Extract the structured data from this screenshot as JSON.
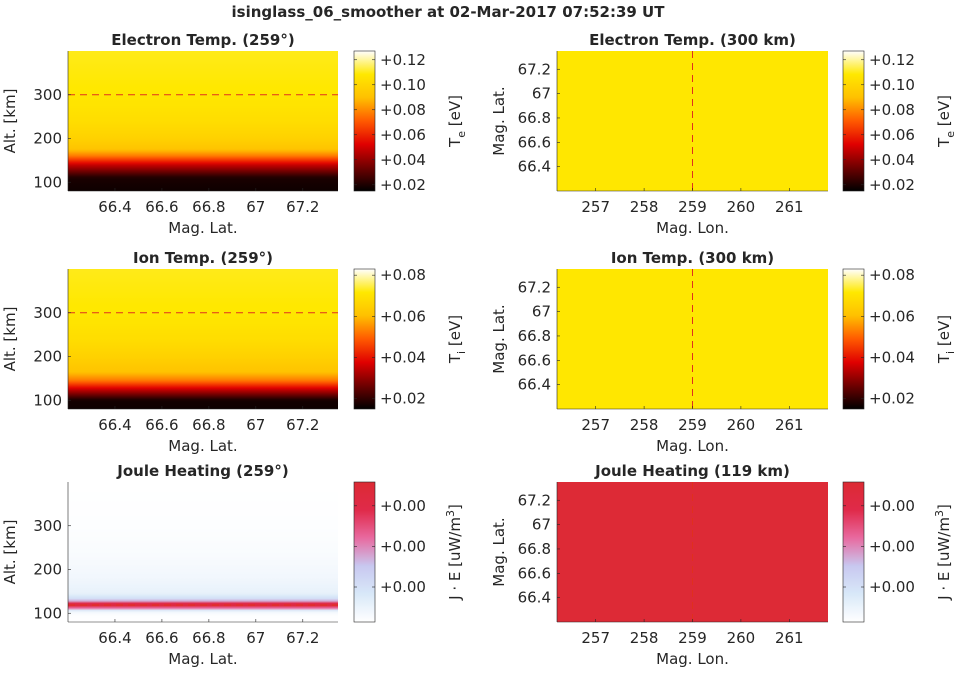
{
  "figure": {
    "title": "isinglass_06_smoother at 02-Mar-2017 07:52:39 UT"
  },
  "colors": {
    "hot": [
      "#000000",
      "#6e0000",
      "#e00000",
      "#ff5a00",
      "#ffc000",
      "#ffe800",
      "#ffffff"
    ],
    "joule": [
      "#ffffff",
      "#d8e8f8",
      "#c8c8f0",
      "#e86aa0",
      "#e02a4a",
      "#dc2a33"
    ],
    "marker_line": "#e0301e"
  },
  "chart_data": [
    {
      "type": "heatmap",
      "title": "Electron Temp. (259°)",
      "xlabel": "Mag. Lat.",
      "ylabel": "Alt. [km]",
      "xlim": [
        66.2,
        67.35
      ],
      "ylim": [
        80,
        400
      ],
      "xticks": [
        66.4,
        66.6,
        66.8,
        67,
        67.2
      ],
      "xticklabels": [
        "66.4",
        "66.6",
        "66.8",
        "67",
        "67.2"
      ],
      "yticks": [
        100,
        200,
        300
      ],
      "yticklabels": [
        "100",
        "200",
        "300"
      ],
      "colormap": "hot",
      "reference_line": {
        "orientation": "horizontal",
        "value": 300
      },
      "profile": {
        "variable": "altitude",
        "values": [
          80,
          110,
          140,
          160,
          175,
          200,
          240,
          300,
          400
        ],
        "fraction": [
          0.02,
          0.04,
          0.3,
          0.55,
          0.68,
          0.74,
          0.79,
          0.83,
          0.85
        ]
      },
      "colorbar": {
        "label": "T_e [eV]",
        "label_main": "T",
        "label_sub": "e",
        "label_unit": " [eV]",
        "range": [
          0.015,
          0.127
        ],
        "ticks": [
          0.02,
          0.04,
          0.06,
          0.08,
          0.1,
          0.12
        ],
        "ticklabels": [
          "+0.02",
          "+0.04",
          "+0.06",
          "+0.08",
          "+0.10",
          "+0.12"
        ]
      }
    },
    {
      "type": "heatmap",
      "title": "Electron Temp. (300 km)",
      "xlabel": "Mag. Lon.",
      "ylabel": "Mag. Lat.",
      "xlim": [
        256.2,
        261.8
      ],
      "ylim": [
        66.2,
        67.35
      ],
      "xticks": [
        257,
        258,
        259,
        260,
        261
      ],
      "xticklabels": [
        "257",
        "258",
        "259",
        "260",
        "261"
      ],
      "yticks": [
        66.4,
        66.6,
        66.8,
        67,
        67.2
      ],
      "yticklabels": [
        "66.4",
        "66.6",
        "66.8",
        "67",
        "67.2"
      ],
      "colormap": "hot",
      "reference_line": {
        "orientation": "vertical",
        "value": 259
      },
      "uniform_fraction": 0.83,
      "colorbar": {
        "label": "T_e [eV]",
        "label_main": "T",
        "label_sub": "e",
        "label_unit": " [eV]",
        "range": [
          0.015,
          0.127
        ],
        "ticks": [
          0.02,
          0.04,
          0.06,
          0.08,
          0.1,
          0.12
        ],
        "ticklabels": [
          "+0.02",
          "+0.04",
          "+0.06",
          "+0.08",
          "+0.10",
          "+0.12"
        ]
      }
    },
    {
      "type": "heatmap",
      "title": "Ion Temp. (259°)",
      "xlabel": "Mag. Lat.",
      "ylabel": "Alt. [km]",
      "xlim": [
        66.2,
        67.35
      ],
      "ylim": [
        80,
        400
      ],
      "xticks": [
        66.4,
        66.6,
        66.8,
        67,
        67.2
      ],
      "xticklabels": [
        "66.4",
        "66.6",
        "66.8",
        "67",
        "67.2"
      ],
      "yticks": [
        100,
        200,
        300
      ],
      "yticklabels": [
        "100",
        "200",
        "300"
      ],
      "colormap": "hot",
      "reference_line": {
        "orientation": "horizontal",
        "value": 300
      },
      "profile": {
        "variable": "altitude",
        "values": [
          80,
          100,
          125,
          145,
          165,
          200,
          240,
          300,
          400
        ],
        "fraction": [
          0.02,
          0.03,
          0.3,
          0.55,
          0.68,
          0.74,
          0.79,
          0.83,
          0.85
        ]
      },
      "colorbar": {
        "label": "T_i [eV]",
        "label_main": "T",
        "label_sub": "i",
        "label_unit": " [eV]",
        "range": [
          0.015,
          0.083
        ],
        "ticks": [
          0.02,
          0.04,
          0.06,
          0.08
        ],
        "ticklabels": [
          "+0.02",
          "+0.04",
          "+0.06",
          "+0.08"
        ]
      }
    },
    {
      "type": "heatmap",
      "title": "Ion Temp. (300 km)",
      "xlabel": "Mag. Lon.",
      "ylabel": "Mag. Lat.",
      "xlim": [
        256.2,
        261.8
      ],
      "ylim": [
        66.2,
        67.35
      ],
      "xticks": [
        257,
        258,
        259,
        260,
        261
      ],
      "xticklabels": [
        "257",
        "258",
        "259",
        "260",
        "261"
      ],
      "yticks": [
        66.4,
        66.6,
        66.8,
        67,
        67.2
      ],
      "yticklabels": [
        "66.4",
        "66.6",
        "66.8",
        "67",
        "67.2"
      ],
      "colormap": "hot",
      "reference_line": {
        "orientation": "vertical",
        "value": 259
      },
      "uniform_fraction": 0.83,
      "colorbar": {
        "label": "T_i [eV]",
        "label_main": "T",
        "label_sub": "i",
        "label_unit": " [eV]",
        "range": [
          0.015,
          0.083
        ],
        "ticks": [
          0.02,
          0.04,
          0.06,
          0.08
        ],
        "ticklabels": [
          "+0.02",
          "+0.04",
          "+0.06",
          "+0.08"
        ]
      }
    },
    {
      "type": "heatmap",
      "title": "Joule Heating (259°)",
      "xlabel": "Mag. Lat.",
      "ylabel": "Alt. [km]",
      "xlim": [
        66.2,
        67.35
      ],
      "ylim": [
        80,
        400
      ],
      "xticks": [
        66.4,
        66.6,
        66.8,
        67,
        67.2
      ],
      "xticklabels": [
        "66.4",
        "66.6",
        "66.8",
        "67",
        "67.2"
      ],
      "yticks": [
        100,
        200,
        300
      ],
      "yticklabels": [
        "100",
        "200",
        "300"
      ],
      "colormap": "joule",
      "reference_line": {
        "orientation": "horizontal",
        "value": 119
      },
      "profile": {
        "variable": "altitude",
        "values": [
          80,
          100,
          108,
          113,
          119,
          125,
          130,
          145,
          180,
          240,
          300,
          400
        ],
        "fraction": [
          0.0,
          0.02,
          0.2,
          0.7,
          1.0,
          0.7,
          0.3,
          0.12,
          0.07,
          0.03,
          0.01,
          0.0
        ]
      },
      "colorbar": {
        "label": "J · E [uW/m^3]",
        "label_main": "J · E [uW/m",
        "label_sup": "3",
        "label_unit": "]",
        "range": [
          0.0,
          1.0
        ],
        "ticks": [
          0.25,
          0.54,
          0.83
        ],
        "ticklabels": [
          "+0.00",
          "+0.00",
          "+0.00"
        ]
      }
    },
    {
      "type": "heatmap",
      "title": "Joule Heating (119 km)",
      "xlabel": "Mag. Lon.",
      "ylabel": "Mag. Lat.",
      "xlim": [
        256.2,
        261.8
      ],
      "ylim": [
        66.2,
        67.35
      ],
      "xticks": [
        257,
        258,
        259,
        260,
        261
      ],
      "xticklabels": [
        "257",
        "258",
        "259",
        "260",
        "261"
      ],
      "yticks": [
        66.4,
        66.6,
        66.8,
        67,
        67.2
      ],
      "yticklabels": [
        "66.4",
        "66.6",
        "66.8",
        "67",
        "67.2"
      ],
      "colormap": "joule",
      "reference_line": {
        "orientation": "vertical",
        "value": 259
      },
      "uniform_fraction": 0.97,
      "colorbar": {
        "label": "J · E [uW/m^3]",
        "label_main": "J · E [uW/m",
        "label_sup": "3",
        "label_unit": "]",
        "range": [
          0.0,
          1.0
        ],
        "ticks": [
          0.25,
          0.54,
          0.83
        ],
        "ticklabels": [
          "+0.00",
          "+0.00",
          "+0.00"
        ]
      }
    }
  ]
}
